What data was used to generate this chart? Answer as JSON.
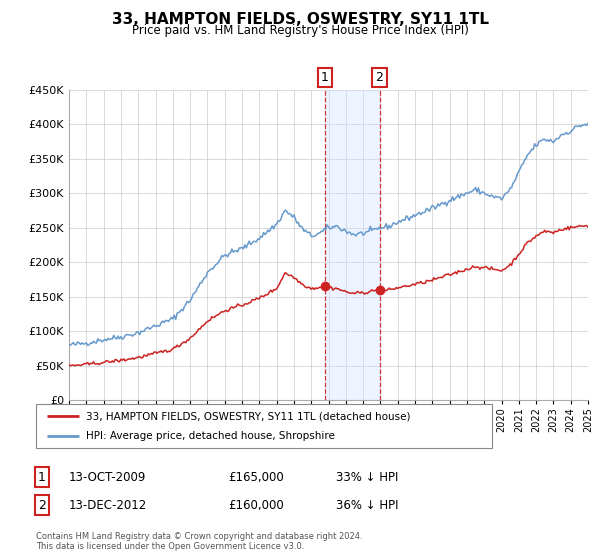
{
  "title": "33, HAMPTON FIELDS, OSWESTRY, SY11 1TL",
  "subtitle": "Price paid vs. HM Land Registry's House Price Index (HPI)",
  "legend_line1": "33, HAMPTON FIELDS, OSWESTRY, SY11 1TL (detached house)",
  "legend_line2": "HPI: Average price, detached house, Shropshire",
  "transaction1_label": "1",
  "transaction1_date": "13-OCT-2009",
  "transaction1_price": "£165,000",
  "transaction1_hpi": "33% ↓ HPI",
  "transaction2_label": "2",
  "transaction2_date": "13-DEC-2012",
  "transaction2_price": "£160,000",
  "transaction2_hpi": "36% ↓ HPI",
  "footer": "Contains HM Land Registry data © Crown copyright and database right 2024.\nThis data is licensed under the Open Government Licence v3.0.",
  "hpi_color": "#6699cc",
  "price_color": "#cc2222",
  "marker_color": "#cc2222",
  "shading_color": "#cce0ff",
  "grid_color": "#cccccc",
  "background_color": "#ffffff",
  "transaction1_x": 2009.78,
  "transaction2_x": 2012.95,
  "ylim": [
    0,
    450000
  ],
  "xlim_start": 1995,
  "xlim_end": 2025
}
